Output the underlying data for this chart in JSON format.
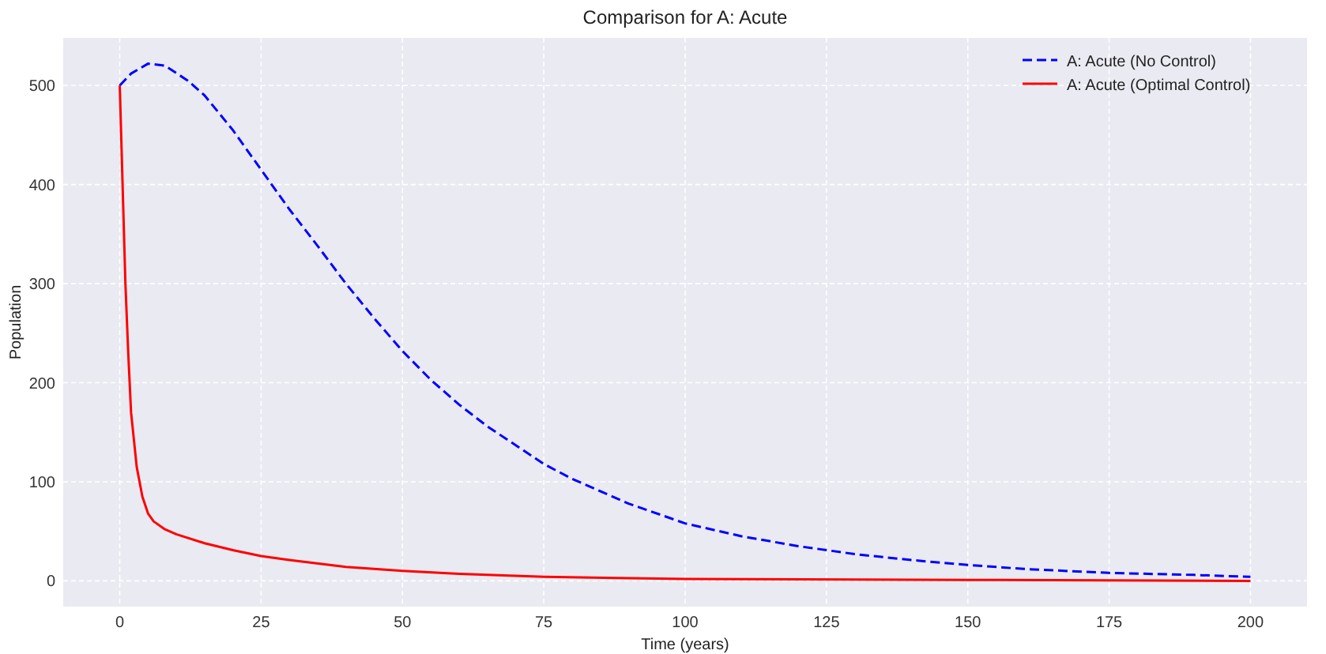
{
  "chart_data": {
    "type": "line",
    "title": "Comparison for A: Acute",
    "xlabel": "Time (years)",
    "ylabel": "Population",
    "xlim": [
      -10,
      210
    ],
    "ylim": [
      -26,
      548
    ],
    "xticks": [
      0,
      25,
      50,
      75,
      100,
      125,
      150,
      175,
      200
    ],
    "yticks": [
      0,
      100,
      200,
      300,
      400,
      500
    ],
    "grid": true,
    "legend": "top right",
    "series": [
      {
        "name": "A: Acute (No Control)",
        "color": "#0000ff",
        "line_style": "dashed",
        "x": [
          0,
          2,
          5,
          8,
          12,
          15,
          20,
          25,
          30,
          35,
          40,
          45,
          50,
          55,
          60,
          65,
          70,
          75,
          80,
          90,
          100,
          110,
          120,
          130,
          140,
          150,
          160,
          175,
          190,
          200
        ],
        "values": [
          500,
          512,
          522,
          520,
          505,
          490,
          455,
          415,
          375,
          338,
          300,
          265,
          232,
          203,
          178,
          156,
          137,
          118,
          103,
          78,
          58,
          45,
          35,
          27,
          21,
          16,
          12,
          8,
          6,
          4
        ]
      },
      {
        "name": "A: Acute (Optimal Control)",
        "color": "#ff0000",
        "line_style": "solid",
        "x": [
          0,
          0.5,
          1,
          1.5,
          2,
          3,
          4,
          5,
          6,
          8,
          10,
          15,
          20,
          25,
          30,
          40,
          50,
          60,
          75,
          100,
          150,
          200
        ],
        "values": [
          500,
          400,
          300,
          230,
          170,
          115,
          85,
          68,
          60,
          52,
          47,
          38,
          31,
          25,
          21,
          14,
          10,
          7,
          4,
          2,
          1,
          0
        ]
      }
    ]
  }
}
